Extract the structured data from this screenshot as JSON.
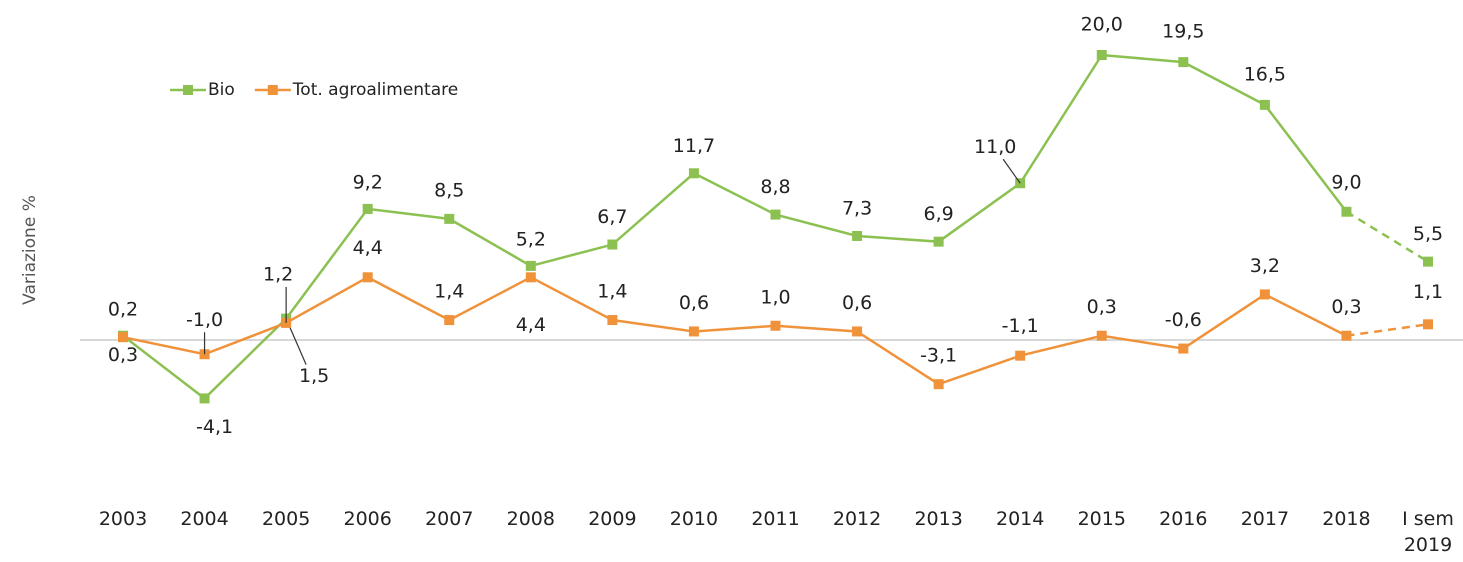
{
  "chart_data": {
    "type": "line",
    "y_label": "Variazione %",
    "categories": [
      "2003",
      "2004",
      "2005",
      "2006",
      "2007",
      "2008",
      "2009",
      "2010",
      "2011",
      "2012",
      "2013",
      "2014",
      "2015",
      "2016",
      "2017",
      "2018",
      "I sem 2019"
    ],
    "series": [
      {
        "name": "Bio",
        "color": "#8cc152",
        "values": [
          0.3,
          -4.1,
          1.5,
          9.2,
          8.5,
          5.2,
          6.7,
          11.7,
          8.8,
          7.3,
          6.9,
          11.0,
          20.0,
          19.5,
          16.5,
          9.0,
          5.5
        ],
        "value_labels": [
          "0,3",
          "-4,1",
          "1,5",
          "9,2",
          "8,5",
          "5,2",
          "6,7",
          "11,7",
          "8,8",
          "7,3",
          "6,9",
          "11,0",
          "20,0",
          "19,5",
          "16,5",
          "9,0",
          "5,5"
        ]
      },
      {
        "name": "Tot. agroalimentare",
        "color": "#f0923a",
        "values": [
          0.2,
          -1.0,
          1.2,
          4.4,
          1.4,
          4.4,
          1.4,
          0.6,
          1.0,
          0.6,
          -3.1,
          -1.1,
          0.3,
          -0.6,
          3.2,
          0.3,
          1.1
        ],
        "value_labels": [
          "0,2",
          "-1,0",
          "1,2",
          "4,4",
          "1,4",
          "4,4",
          "1,4",
          "0,6",
          "1,0",
          "0,6",
          "-3,1",
          "-1,1",
          "0,3",
          "-0,6",
          "3,2",
          "0,3",
          "1,1"
        ]
      }
    ],
    "ylim": [
      -5,
      22
    ],
    "last_segment_dashed": true,
    "legend": "top-left"
  }
}
